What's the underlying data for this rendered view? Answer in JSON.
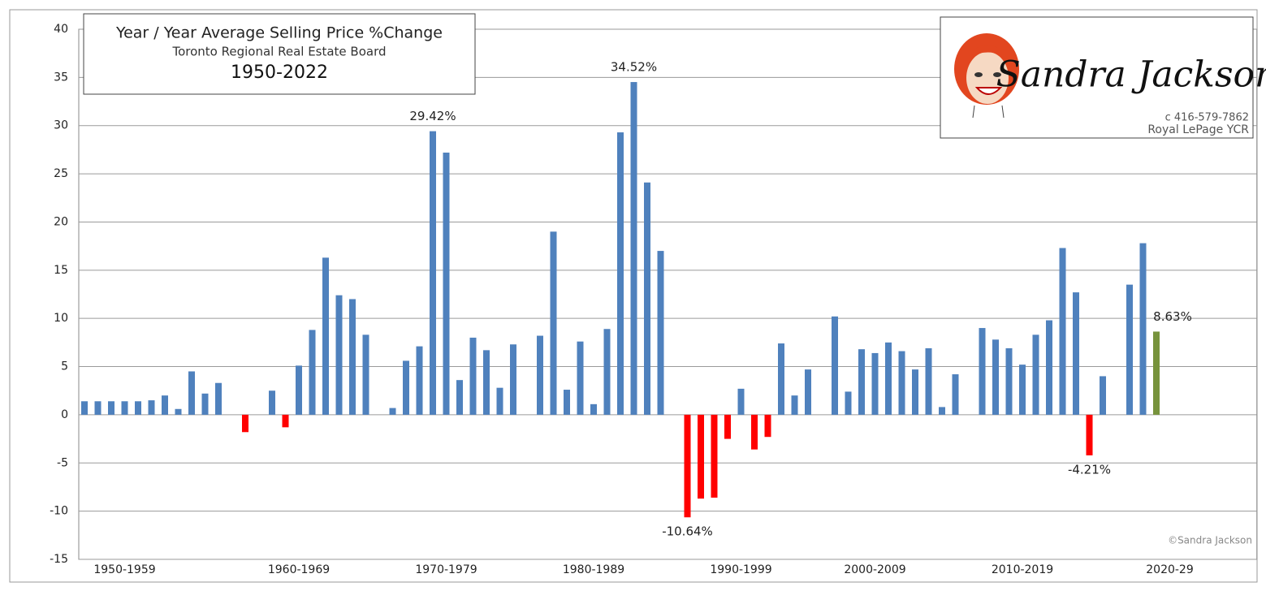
{
  "chart_data": {
    "type": "bar",
    "title": "Year / Year Average Selling Price %Change",
    "subtitle": "Toronto Regional Real Estate Board",
    "period": "1950-2022",
    "categories": [
      null,
      null,
      null,
      "1950-1959",
      null,
      null,
      null,
      null,
      null,
      null,
      null,
      null,
      null,
      null,
      null,
      null,
      "1960-1969",
      null,
      null,
      null,
      null,
      null,
      null,
      null,
      null,
      null,
      null,
      "1970-1979",
      null,
      null,
      null,
      null,
      null,
      null,
      null,
      null,
      null,
      null,
      "1980-1989",
      null,
      null,
      null,
      null,
      null,
      null,
      null,
      null,
      null,
      null,
      "1990-1999",
      null,
      null,
      null,
      null,
      null,
      null,
      null,
      null,
      null,
      "2000-2009",
      null,
      null,
      null,
      null,
      null,
      null,
      null,
      null,
      null,
      null,
      "2010-2019",
      null,
      null,
      null,
      null,
      null,
      null,
      null,
      null,
      null,
      null,
      "2020-29",
      null,
      null,
      null,
      null,
      null,
      null
    ],
    "values": [
      1.4,
      1.4,
      1.4,
      1.4,
      1.4,
      1.5,
      2.0,
      0.6,
      4.5,
      2.2,
      3.3,
      null,
      -1.8,
      null,
      2.5,
      -1.3,
      5.1,
      8.8,
      16.3,
      12.4,
      12.0,
      8.3,
      null,
      0.7,
      5.6,
      7.1,
      29.42,
      27.2,
      3.6,
      8.0,
      6.7,
      2.8,
      7.3,
      null,
      8.2,
      19.0,
      2.6,
      7.6,
      1.1,
      8.9,
      29.3,
      34.52,
      24.1,
      17.0,
      null,
      -10.64,
      -8.7,
      -8.6,
      -2.5,
      2.7,
      -3.6,
      -2.3,
      7.4,
      2.0,
      4.7,
      null,
      10.2,
      2.4,
      6.8,
      6.4,
      7.5,
      6.6,
      4.7,
      6.9,
      0.8,
      4.2,
      null,
      9.0,
      7.8,
      6.9,
      5.2,
      8.3,
      9.8,
      17.3,
      12.7,
      -4.21,
      4.0,
      null,
      13.5,
      17.8,
      8.63,
      null,
      null,
      null,
      null,
      null,
      null,
      null
    ],
    "value_labels": [
      null,
      null,
      null,
      null,
      null,
      null,
      null,
      null,
      null,
      null,
      null,
      null,
      null,
      null,
      null,
      null,
      null,
      null,
      null,
      null,
      null,
      null,
      null,
      null,
      null,
      null,
      "29.42%",
      null,
      null,
      null,
      null,
      null,
      null,
      null,
      null,
      null,
      null,
      null,
      null,
      null,
      null,
      "34.52%",
      null,
      null,
      null,
      "-10.64%",
      null,
      null,
      null,
      null,
      null,
      null,
      null,
      null,
      null,
      null,
      null,
      null,
      null,
      null,
      null,
      null,
      null,
      null,
      null,
      null,
      null,
      null,
      null,
      null,
      null,
      null,
      null,
      null,
      null,
      "-4.21%",
      null,
      null,
      null,
      null,
      "8.63%",
      null,
      null,
      null,
      null,
      null,
      null,
      null
    ],
    "color": "#4f81bd",
    "negative_color": "#ff0000",
    "latest_color": "#77933c",
    "ylim": [
      -15,
      40
    ],
    "yticks": [
      -15,
      -10,
      -5,
      0,
      5,
      10,
      15,
      20,
      25,
      30,
      35,
      40
    ],
    "grid": true,
    "copyright": "©Sandra Jackson"
  },
  "logo": {
    "name": "Sandra Jackson",
    "phone": "c 416-579-7862",
    "company": "Royal LePage YCR"
  }
}
